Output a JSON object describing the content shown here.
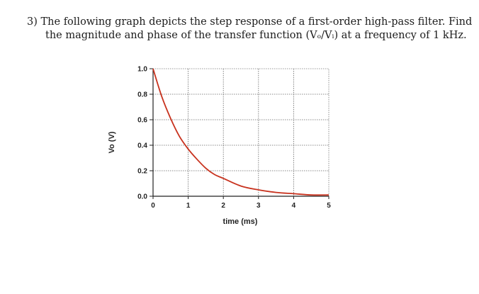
{
  "question": {
    "line1": "3) The following graph depicts the step response of a first-order high-pass filter. Find",
    "line2": "the magnitude and phase of the transfer function (Vₒ/Vᵢ) at a frequency of 1 kHz."
  },
  "chart_data": {
    "type": "line",
    "title": "",
    "xlabel": "time (ms)",
    "ylabel": "Vo (V)",
    "xlim": [
      0,
      5
    ],
    "ylim": [
      0,
      1
    ],
    "grid": true,
    "x_ticks": [
      {
        "value": 0,
        "label": "0"
      },
      {
        "value": 1,
        "label": "1"
      },
      {
        "value": 2,
        "label": "2"
      },
      {
        "value": 3,
        "label": "3"
      },
      {
        "value": 4,
        "label": "4"
      },
      {
        "value": 5,
        "label": "5"
      }
    ],
    "y_ticks": [
      {
        "value": 0,
        "label": "0.0"
      },
      {
        "value": 0.2,
        "label": "0.2"
      },
      {
        "value": 0.4,
        "label": "0.4"
      },
      {
        "value": 0.6,
        "label": "0.6"
      },
      {
        "value": 0.8,
        "label": "0.8"
      },
      {
        "value": 1.0,
        "label": "1.0"
      }
    ],
    "series": [
      {
        "color": "#c8321e",
        "x": [
          0,
          0.25,
          0.5,
          0.75,
          1.0,
          1.25,
          1.5,
          1.75,
          2.0,
          2.5,
          3.0,
          3.5,
          4.0,
          4.5,
          5.0
        ],
        "y": [
          1.0,
          0.78,
          0.61,
          0.47,
          0.37,
          0.29,
          0.22,
          0.17,
          0.14,
          0.08,
          0.05,
          0.03,
          0.02,
          0.01,
          0.01
        ]
      }
    ]
  }
}
